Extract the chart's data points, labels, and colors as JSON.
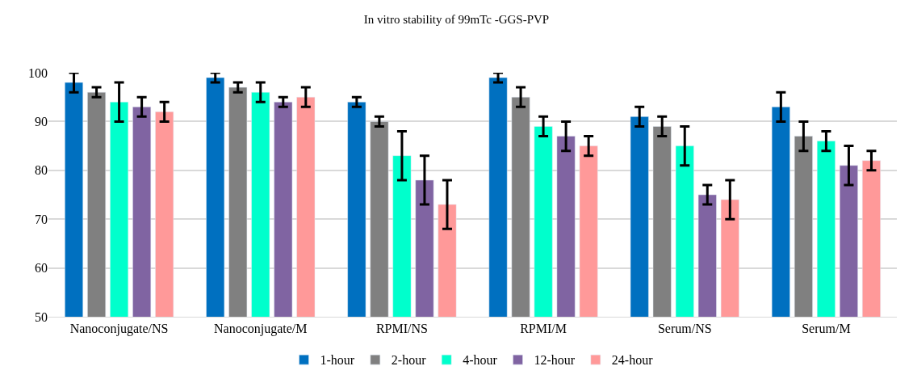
{
  "chart_data": {
    "type": "bar",
    "title": "In vitro stability of 99mTc -GGS-PVP",
    "categories": [
      "Nanoconjugate/NS",
      "Nanoconjugate/M",
      "RPMI/NS",
      "RPMI/M",
      "Serum/NS",
      "Serum/M"
    ],
    "series": [
      {
        "name": "1-hour",
        "color": "#0070c0",
        "values": [
          98,
          99,
          94,
          99,
          91,
          93
        ],
        "errors": [
          2,
          1,
          1,
          1,
          2,
          3
        ]
      },
      {
        "name": "2-hour",
        "color": "#808080",
        "values": [
          96,
          97,
          90,
          95,
          89,
          87
        ],
        "errors": [
          1,
          1,
          1,
          2,
          2,
          3
        ]
      },
      {
        "name": "4-hour",
        "color": "#00ffcc",
        "values": [
          94,
          96,
          83,
          89,
          85,
          86
        ],
        "errors": [
          4,
          2,
          5,
          2,
          4,
          2
        ]
      },
      {
        "name": "12-hour",
        "color": "#8064a2",
        "values": [
          93,
          94,
          78,
          87,
          75,
          81
        ],
        "errors": [
          2,
          1,
          5,
          3,
          2,
          4
        ]
      },
      {
        "name": "24-hour",
        "color": "#ff9999",
        "values": [
          92,
          95,
          73,
          85,
          74,
          82
        ],
        "errors": [
          2,
          2,
          5,
          2,
          4,
          2
        ]
      }
    ],
    "ylim": [
      50,
      100
    ],
    "yticks": [
      50,
      60,
      70,
      80,
      90,
      100
    ],
    "grid": "y",
    "legend": "bottom"
  }
}
